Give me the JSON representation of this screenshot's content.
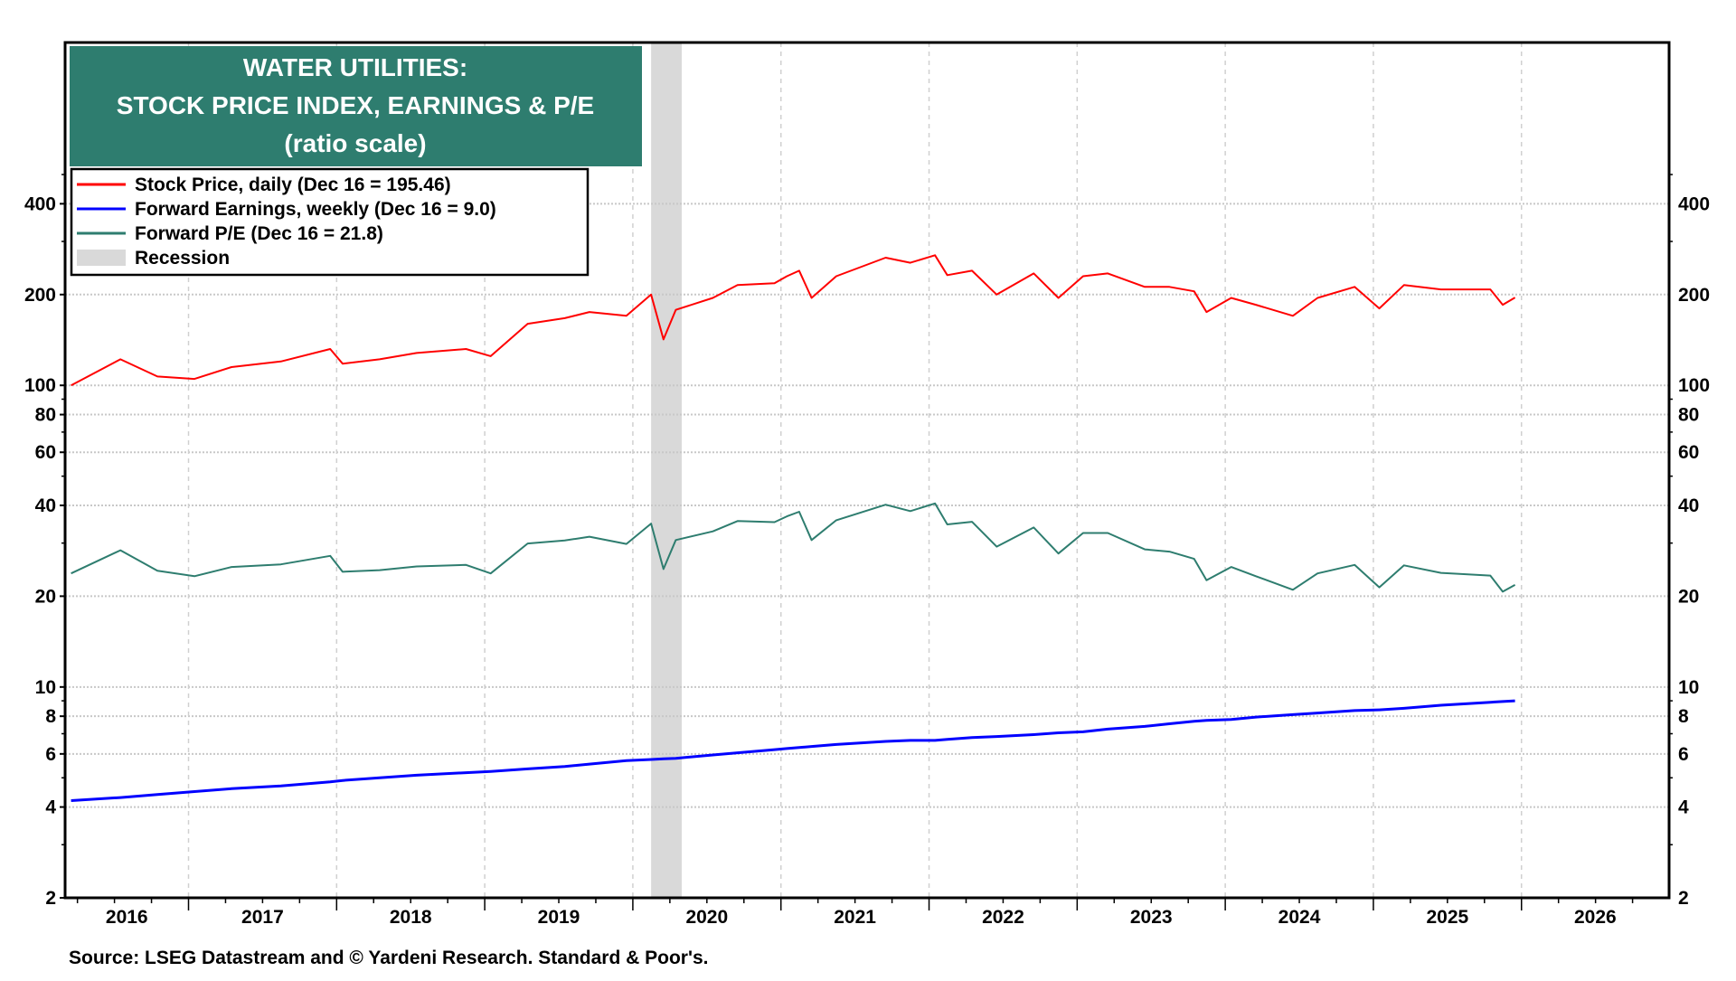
{
  "chart_data": {
    "type": "line",
    "title": [
      "WATER UTILITIES:",
      "STOCK PRICE INDEX, EARNINGS & P/E",
      "(ratio scale)"
    ],
    "y_scale": "log",
    "ylim": [
      2,
      1370
    ],
    "xlim": [
      "2016-03",
      "2026-12"
    ],
    "grid": true,
    "legend_placement": "top-left",
    "y_ticks": [
      2,
      4,
      6,
      8,
      10,
      20,
      40,
      60,
      80,
      100,
      200,
      400
    ],
    "y_tick_labels": [
      "2",
      "4",
      "6",
      "8",
      "10",
      "20",
      "40",
      "60",
      "80",
      "100",
      "200",
      "400"
    ],
    "x_tick_labels": [
      "2016",
      "2017",
      "2018",
      "2019",
      "2020",
      "2021",
      "2022",
      "2023",
      "2024",
      "2025",
      "2026"
    ],
    "recessions": [
      {
        "start": "2020-02",
        "end": "2020-04",
        "name": "Recession",
        "color": "#d9d9d9"
      }
    ],
    "dates": [
      "2016-03",
      "2016-07",
      "2016-10",
      "2017-01",
      "2017-04",
      "2017-08",
      "2017-12",
      "2018-01",
      "2018-04",
      "2018-07",
      "2018-11",
      "2019-01",
      "2019-04",
      "2019-07",
      "2019-09",
      "2019-12",
      "2020-02",
      "2020-03",
      "2020-04",
      "2020-07",
      "2020-09",
      "2020-12",
      "2021-01",
      "2021-02",
      "2021-03",
      "2021-05",
      "2021-09",
      "2021-11",
      "2022-01",
      "2022-02",
      "2022-04",
      "2022-06",
      "2022-09",
      "2022-11",
      "2023-01",
      "2023-03",
      "2023-06",
      "2023-08",
      "2023-10",
      "2023-11",
      "2024-01",
      "2024-03",
      "2024-06",
      "2024-08",
      "2024-11",
      "2025-01",
      "2025-03",
      "2025-06",
      "2025-10",
      "2025-11",
      "2025-12"
    ],
    "series": [
      {
        "name": "Stock Price, daily (Dec 16 = 195.46)",
        "color": "#ff0000",
        "values": [
          100,
          122,
          107,
          105,
          115,
          120,
          132,
          118,
          122,
          128,
          132,
          125,
          160,
          167,
          175,
          170,
          200,
          142,
          178,
          195,
          215,
          218,
          230,
          240,
          195,
          230,
          265,
          255,
          270,
          232,
          240,
          200,
          235,
          195,
          230,
          235,
          212,
          212,
          205,
          175,
          195,
          185,
          170,
          195,
          212,
          180,
          215,
          208,
          208,
          185,
          195.46
        ]
      },
      {
        "name": "Forward Earnings, weekly (Dec 16 = 9.0)",
        "color": "#0000ff",
        "values": [
          4.2,
          4.3,
          4.4,
          4.5,
          4.6,
          4.7,
          4.85,
          4.9,
          5.0,
          5.1,
          5.2,
          5.25,
          5.35,
          5.45,
          5.55,
          5.7,
          5.75,
          5.78,
          5.8,
          5.95,
          6.05,
          6.2,
          6.25,
          6.3,
          6.35,
          6.45,
          6.6,
          6.65,
          6.65,
          6.7,
          6.8,
          6.85,
          6.95,
          7.05,
          7.1,
          7.25,
          7.4,
          7.55,
          7.7,
          7.75,
          7.8,
          7.95,
          8.1,
          8.2,
          8.35,
          8.4,
          8.5,
          8.7,
          8.9,
          8.95,
          9.0
        ]
      },
      {
        "name": "Forward P/E (Dec 16 = 21.8)",
        "color": "#2e7d6f",
        "values": [
          23.8,
          28.4,
          24.3,
          23.3,
          25.0,
          25.5,
          27.2,
          24.1,
          24.4,
          25.1,
          25.4,
          23.8,
          29.9,
          30.6,
          31.5,
          29.8,
          34.8,
          24.6,
          30.7,
          32.8,
          35.5,
          35.2,
          36.8,
          38.1,
          30.7,
          35.7,
          40.2,
          38.3,
          40.6,
          34.6,
          35.3,
          29.2,
          33.8,
          27.7,
          32.4,
          32.4,
          28.6,
          28.1,
          26.6,
          22.6,
          25.0,
          23.3,
          21.0,
          23.8,
          25.4,
          21.4,
          25.3,
          23.9,
          23.4,
          20.7,
          21.8
        ]
      }
    ],
    "legend": [
      {
        "label": "Stock Price, daily (Dec 16 = 195.46)",
        "color": "#ff0000"
      },
      {
        "label": "Forward Earnings, weekly (Dec 16 = 9.0)",
        "color": "#0000ff"
      },
      {
        "label": "Forward P/E (Dec 16 = 21.8)",
        "color": "#2e7d6f"
      },
      {
        "label": "Recession",
        "color": "#d9d9d9"
      }
    ],
    "title_box_color": "#2e7d6f",
    "source": "Source: LSEG Datastream and © Yardeni Research. Standard & Poor's."
  }
}
